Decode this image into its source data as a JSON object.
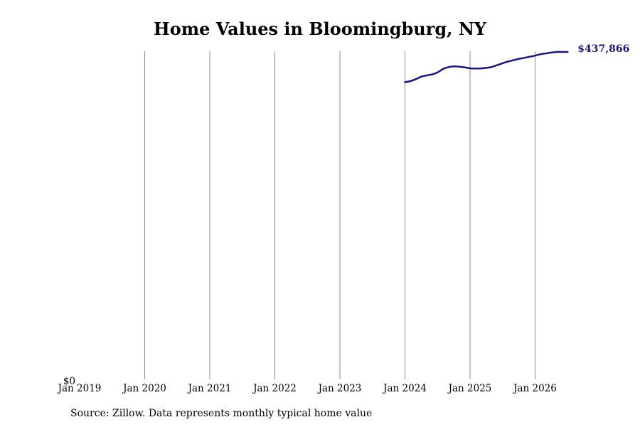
{
  "title": "Home Values in Bloomingburg, NY",
  "source": "Source: Zillow. Data represents monthly typical home value",
  "chart_data": {
    "type": "line",
    "title": "Home Values in Bloomingburg, NY",
    "xlabel": "",
    "ylabel": "",
    "x_ticks": [
      "Jan 2019",
      "Jan 2020",
      "Jan 2021",
      "Jan 2022",
      "Jan 2023",
      "Jan 2024",
      "Jan 2025",
      "Jan 2026"
    ],
    "y_ticks": [
      "$0"
    ],
    "ylim": [
      0,
      437866
    ],
    "grid": "vertical",
    "line_color": "#191970",
    "end_label": "$437,866",
    "series": [
      {
        "x": [
          "2024-01",
          "2024-02",
          "2024-03",
          "2024-04",
          "2024-05",
          "2024-06",
          "2024-07",
          "2024-08",
          "2024-09",
          "2024-10",
          "2024-11",
          "2024-12",
          "2025-01",
          "2025-02",
          "2025-03",
          "2025-04",
          "2025-05",
          "2025-06",
          "2025-07",
          "2025-08",
          "2025-09",
          "2025-10",
          "2025-11",
          "2025-12",
          "2026-01",
          "2026-02",
          "2026-03",
          "2026-04",
          "2026-05",
          "2026-06",
          "2026-07"
        ],
        "y": [
          397500,
          398800,
          401500,
          404800,
          406500,
          407800,
          410500,
          415000,
          417600,
          418500,
          418200,
          417300,
          416000,
          415800,
          415900,
          416500,
          417800,
          420200,
          422800,
          425000,
          426800,
          428600,
          430000,
          431500,
          433000,
          434800,
          436000,
          437000,
          437866,
          437866,
          437866
        ]
      }
    ]
  }
}
